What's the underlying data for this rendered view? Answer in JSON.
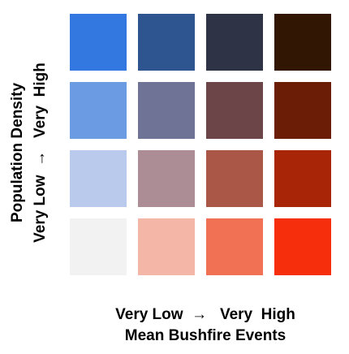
{
  "chart_data": {
    "type": "heatmap",
    "title": "",
    "x_axis": {
      "range_label": "Very Low  →   Very  High",
      "label": "Mean Bushfire Events",
      "levels": 4
    },
    "y_axis": {
      "range_label": "Very Low  →   Very  High",
      "label": "Population Density",
      "levels": 4
    },
    "cells": [
      {
        "row": 1,
        "col": 1,
        "color": "#f2f2f2"
      },
      {
        "row": 1,
        "col": 2,
        "color": "#f4b6a6"
      },
      {
        "row": 1,
        "col": 3,
        "color": "#f07154"
      },
      {
        "row": 1,
        "col": 4,
        "color": "#f62e0c"
      },
      {
        "row": 2,
        "col": 1,
        "color": "#b9caed"
      },
      {
        "row": 2,
        "col": 2,
        "color": "#ac8d96"
      },
      {
        "row": 2,
        "col": 3,
        "color": "#aa5748"
      },
      {
        "row": 2,
        "col": 4,
        "color": "#a82507"
      },
      {
        "row": 3,
        "col": 1,
        "color": "#6b9be2"
      },
      {
        "row": 3,
        "col": 2,
        "color": "#6f7396"
      },
      {
        "row": 3,
        "col": 3,
        "color": "#6c4548"
      },
      {
        "row": 3,
        "col": 4,
        "color": "#6c1d05"
      },
      {
        "row": 4,
        "col": 1,
        "color": "#3278e0"
      },
      {
        "row": 4,
        "col": 2,
        "color": "#2f5591"
      },
      {
        "row": 4,
        "col": 3,
        "color": "#2e3346"
      },
      {
        "row": 4,
        "col": 4,
        "color": "#301603"
      }
    ]
  }
}
